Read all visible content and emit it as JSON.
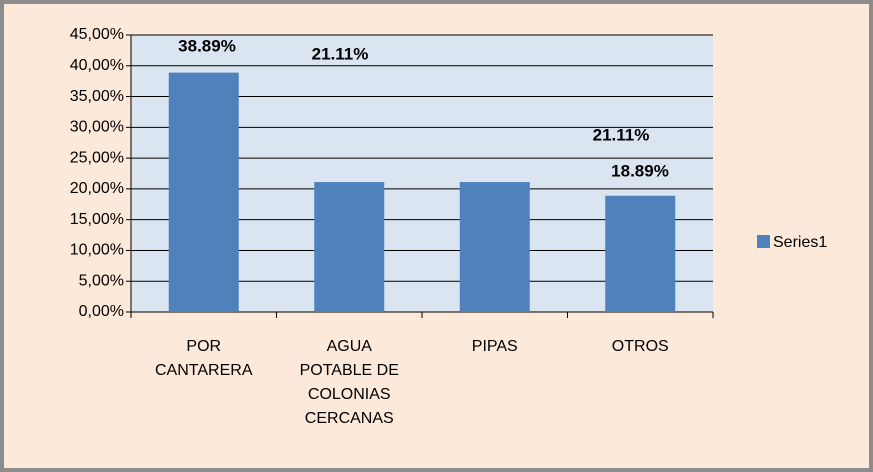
{
  "chart_data": {
    "type": "bar",
    "categories": [
      "POR CANTARERA",
      "AGUA POTABLE DE COLONIAS CERCANAS",
      "PIPAS",
      "OTROS"
    ],
    "series": [
      {
        "name": "Series1",
        "color": "#4f81bd",
        "values": [
          38.89,
          21.11,
          21.11,
          18.89
        ],
        "value_labels": [
          "38.89%",
          "21.11%",
          "21.11%",
          "18.89%"
        ]
      }
    ],
    "ylim": [
      0,
      45
    ],
    "yticks": [
      {
        "value": 0,
        "label": "0,00%"
      },
      {
        "value": 5,
        "label": "5,00%"
      },
      {
        "value": 10,
        "label": "10,00%"
      },
      {
        "value": 15,
        "label": "15,00%"
      },
      {
        "value": 20,
        "label": "20,00%"
      },
      {
        "value": 25,
        "label": "25,00%"
      },
      {
        "value": 30,
        "label": "30,00%"
      },
      {
        "value": 35,
        "label": "35,00%"
      },
      {
        "value": 40,
        "label": "40,00%"
      },
      {
        "value": 45,
        "label": "45,00%"
      }
    ],
    "grid": true,
    "legend": "right"
  }
}
